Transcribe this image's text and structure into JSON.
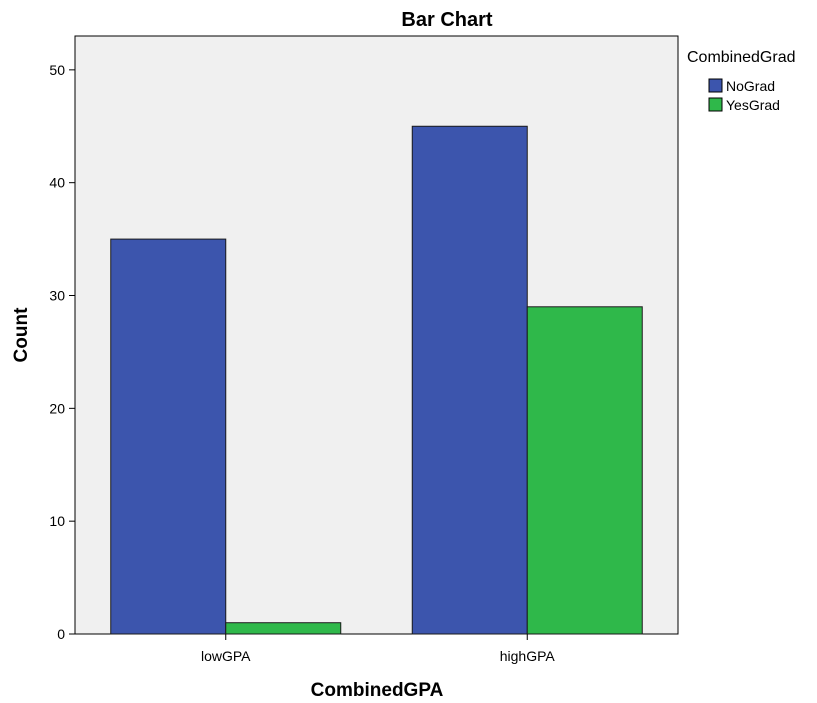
{
  "chart_data": {
    "type": "bar",
    "title": "Bar Chart",
    "xlabel": "CombinedGPA",
    "ylabel": "Count",
    "categories": [
      "lowGPA",
      "highGPA"
    ],
    "series": [
      {
        "name": "NoGrad",
        "values": [
          35,
          45
        ]
      },
      {
        "name": "YesGrad",
        "values": [
          1,
          29
        ]
      }
    ],
    "ylim": [
      0,
      53
    ],
    "yticks": [
      0,
      10,
      20,
      30,
      40,
      50
    ],
    "legend": {
      "title": "CombinedGrad",
      "placement": "right"
    },
    "grid": false,
    "colors": {
      "NoGrad": "#3c55ad",
      "YesGrad": "#2fb84a",
      "plot_background": "#f0f0f0"
    }
  }
}
